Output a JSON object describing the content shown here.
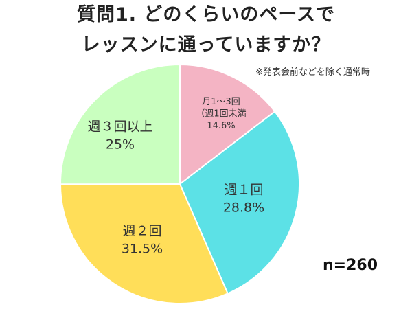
{
  "title_line1": "質問1. どのくらいのペースで",
  "title_line2": "レッスンに通っていますか？",
  "note": "※発表会前などを除く通常時",
  "sample": "n=260",
  "chart_data": {
    "type": "pie",
    "title": "質問1. どのくらいのペースでレッスンに通っていますか？",
    "sample": "n=260",
    "slices": [
      {
        "lines": [
          "月1～3回",
          "（週1回未満",
          "14.6%"
        ],
        "value": 14.6,
        "color": "#f4b4c4",
        "font_size": 13
      },
      {
        "lines": [
          "週１回",
          "28.8%"
        ],
        "value": 28.8,
        "color": "#5ce1e6",
        "font_size": 19
      },
      {
        "lines": [
          "週２回",
          "31.5%"
        ],
        "value": 31.5,
        "color": "#ffde59",
        "font_size": 19
      },
      {
        "lines": [
          "週３回以上",
          "25%"
        ],
        "value": 25,
        "color": "#c9ffbf",
        "font_size": 19
      }
    ],
    "start_angle_deg": 0,
    "direction": "clockwise"
  }
}
